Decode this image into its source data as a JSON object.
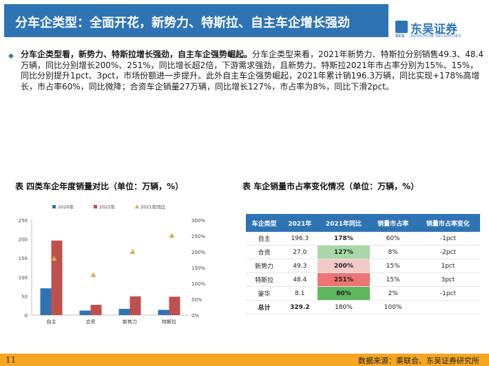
{
  "header": {
    "title": "分车企类型：全面开花，新势力、特斯拉、自主车企增长强劲",
    "logo_cn": "东吴证券",
    "logo_en": "SOOCHOW SECURITIES",
    "logo_mark": "SCS"
  },
  "summary": {
    "lead": "分车企类型看，新势力、特斯拉增长强劲，自主车企强势崛起。",
    "body": "分车企类型来看，2021年新势力、特斯拉分别销售49.3、48.4万辆，同比分别增长200%、251%，同比增长超2倍，下游需求强劲，且新势力、特斯拉2021年市占率分别为15%、15%，同比分别提升1pct、3pct，市场份额进一步提升。此外自主车企强势崛起，2021年累计销196.3万辆，同比实现+178%高增长，市占率60%，同比微降；合资车企销量27万辆，同比增长127%，市占率为8%，同比下滑2pct。"
  },
  "chart_caption": "表  四类车企年度销量对比（单位：万辆，%）",
  "table_caption": "表  车企销量市占率变化情况（单位：万辆，%）",
  "chart_data": {
    "type": "bar",
    "categories": [
      "自主",
      "合资",
      "新势力",
      "特斯拉"
    ],
    "series": [
      {
        "name": "2020年",
        "values": [
          70.5,
          11.9,
          16.4,
          13.8
        ],
        "color": "#2e74b5"
      },
      {
        "name": "2021年",
        "values": [
          196.3,
          27.0,
          49.3,
          48.4
        ],
        "color": "#c0504d"
      }
    ],
    "series_secondary": {
      "name": "2021年同比",
      "values": [
        178,
        127,
        200,
        251
      ],
      "color": "#e0a84e",
      "marker": "triangle"
    },
    "ylim": [
      0,
      250
    ],
    "yticks": [
      "0",
      "50",
      "100",
      "150",
      "200",
      "250"
    ],
    "y2lim": [
      0,
      300
    ],
    "y2ticks": [
      "0%",
      "50%",
      "100%",
      "150%",
      "200%",
      "250%",
      "300%"
    ],
    "legend_position": "top"
  },
  "table": {
    "headers": [
      "车企类型",
      "2021年",
      "2021年同比",
      "销量市占率",
      "销量市占率变化"
    ],
    "rows": [
      {
        "type": "自主",
        "sales": "196.3",
        "yoy": "178%",
        "share": "60%",
        "change": "-1pct",
        "hl": ""
      },
      {
        "type": "合资",
        "sales": "27.0",
        "yoy": "127%",
        "share": "8%",
        "change": "-2pct",
        "hl": "cell-green"
      },
      {
        "type": "新势力",
        "sales": "49.3",
        "yoy": "200%",
        "share": "15%",
        "change": "1pct",
        "hl": "cell-lightred"
      },
      {
        "type": "特斯拉",
        "sales": "48.4",
        "yoy": "251%",
        "share": "15%",
        "change": "3pct",
        "hl": "cell-red"
      },
      {
        "type": "豪华",
        "sales": "8.1",
        "yoy": "80%",
        "share": "2%",
        "change": "-1pct",
        "hl": "cell-greendark"
      }
    ],
    "total": {
      "type": "总计",
      "sales": "329.2",
      "yoy": "180%",
      "share": "100%",
      "change": ""
    }
  },
  "footer": {
    "page_number": "11",
    "source": "数据来源：乘联会、东吴证券研究所"
  }
}
